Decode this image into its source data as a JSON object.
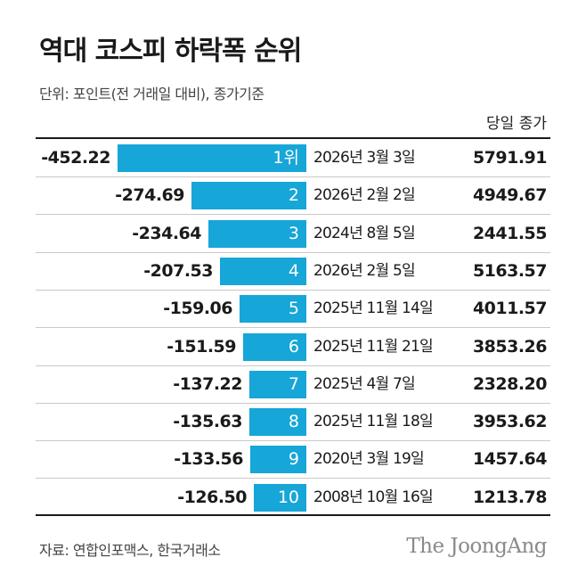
{
  "title": "역대 코스피 하락폭 순위",
  "unit_note": "단위: 포인트(전 거래일 대비), 종가기준",
  "close_header": "당일 종가",
  "source": "자료: 연합인포맥스, 한국거래소",
  "logo": "The JoongAng",
  "colors": {
    "bar": "#16a6d8",
    "text": "#1a1a1a"
  },
  "chart_data": {
    "type": "bar",
    "orientation": "horizontal",
    "title": "역대 코스피 하락폭 순위",
    "rank_labels": [
      "1위",
      "2",
      "3",
      "4",
      "5",
      "6",
      "7",
      "8",
      "9",
      "10"
    ],
    "values": [
      -452.22,
      -274.69,
      -234.64,
      -207.53,
      -159.06,
      -151.59,
      -137.22,
      -135.63,
      -133.56,
      -126.5
    ],
    "value_labels": [
      "-452.22",
      "-274.69",
      "-234.64",
      "-207.53",
      "-159.06",
      "-151.59",
      "-137.22",
      "-135.63",
      "-133.56",
      "-126.50"
    ],
    "dates": [
      "2026년 3월 3일",
      "2026년 2월 2일",
      "2024년 8월 5일",
      "2026년 2월 5일",
      "2025년 11월 14일",
      "2025년 11월 21일",
      "2025년 4월 7일",
      "2025년 11월 18일",
      "2020년 3월 19일",
      "2008년 10월 16일"
    ],
    "closing_prices": [
      "5791.91",
      "4949.67",
      "2441.55",
      "5163.57",
      "4011.57",
      "3853.26",
      "2328.20",
      "3953.62",
      "1457.64",
      "1213.78"
    ]
  }
}
